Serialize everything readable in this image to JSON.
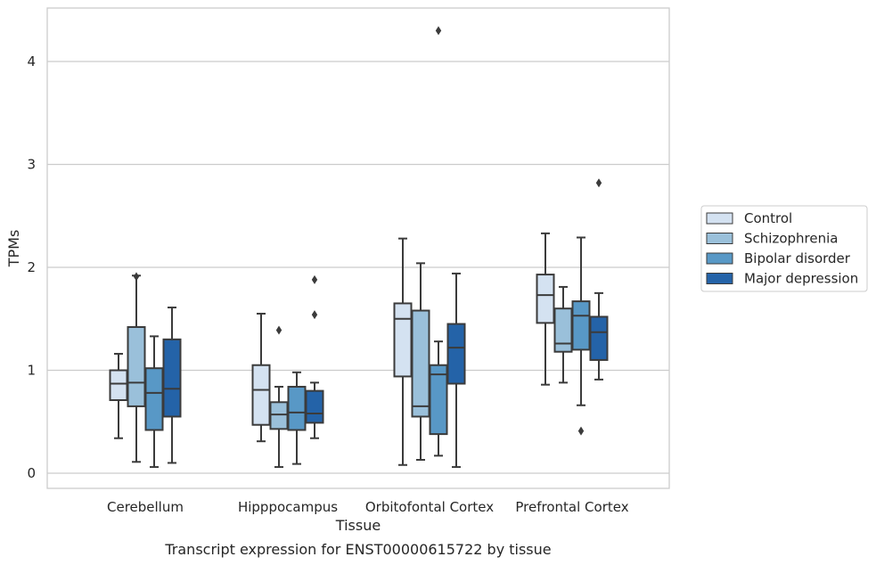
{
  "caption": "Transcript expression for ENST00000615722 by tissue",
  "chart_data": {
    "type": "box",
    "xlabel": "Tissue",
    "ylabel": "TPMs",
    "ylim": [
      -0.15,
      4.55
    ],
    "yticks": [
      0,
      1,
      2,
      3,
      4
    ],
    "grid": "horizontal",
    "legend_position": "right",
    "categories": [
      "Cerebellum",
      "Hipppocampus",
      "Orbitofontal Cortex",
      "Prefrontal Cortex"
    ],
    "series": [
      {
        "name": "Control",
        "color": "#d4e2f1",
        "boxes": [
          {
            "whislo": 0.34,
            "q1": 0.71,
            "med": 0.87,
            "q3": 1.0,
            "whishi": 1.16,
            "fliers": []
          },
          {
            "whislo": 0.31,
            "q1": 0.47,
            "med": 0.81,
            "q3": 1.05,
            "whishi": 1.55,
            "fliers": []
          },
          {
            "whislo": 0.08,
            "q1": 0.94,
            "med": 1.5,
            "q3": 1.65,
            "whishi": 2.28,
            "fliers": []
          },
          {
            "whislo": 0.86,
            "q1": 1.46,
            "med": 1.73,
            "q3": 1.93,
            "whishi": 2.33,
            "fliers": []
          }
        ]
      },
      {
        "name": "Schizophrenia",
        "color": "#9ac0da",
        "boxes": [
          {
            "whislo": 0.11,
            "q1": 0.65,
            "med": 0.88,
            "q3": 1.42,
            "whishi": 1.92,
            "fliers": [
              1.91
            ]
          },
          {
            "whislo": 0.06,
            "q1": 0.43,
            "med": 0.57,
            "q3": 0.69,
            "whishi": 0.84,
            "fliers": [
              1.39
            ]
          },
          {
            "whislo": 0.13,
            "q1": 0.55,
            "med": 0.65,
            "q3": 1.58,
            "whishi": 2.04,
            "fliers": []
          },
          {
            "whislo": 0.88,
            "q1": 1.18,
            "med": 1.26,
            "q3": 1.6,
            "whishi": 1.81,
            "fliers": []
          }
        ]
      },
      {
        "name": "Bipolar disorder",
        "color": "#5898c6",
        "boxes": [
          {
            "whislo": 0.06,
            "q1": 0.42,
            "med": 0.78,
            "q3": 1.02,
            "whishi": 1.33,
            "fliers": []
          },
          {
            "whislo": 0.09,
            "q1": 0.42,
            "med": 0.59,
            "q3": 0.84,
            "whishi": 0.98,
            "fliers": []
          },
          {
            "whislo": 0.17,
            "q1": 0.38,
            "med": 0.96,
            "q3": 1.05,
            "whishi": 1.28,
            "fliers": [
              4.3
            ]
          },
          {
            "whislo": 0.66,
            "q1": 1.2,
            "med": 1.53,
            "q3": 1.67,
            "whishi": 2.29,
            "fliers": [
              0.41
            ]
          }
        ]
      },
      {
        "name": "Major depression",
        "color": "#2463a8",
        "boxes": [
          {
            "whislo": 0.1,
            "q1": 0.55,
            "med": 0.82,
            "q3": 1.3,
            "whishi": 1.61,
            "fliers": []
          },
          {
            "whislo": 0.34,
            "q1": 0.49,
            "med": 0.58,
            "q3": 0.8,
            "whishi": 0.88,
            "fliers": [
              1.54,
              1.88
            ]
          },
          {
            "whislo": 0.06,
            "q1": 0.87,
            "med": 1.22,
            "q3": 1.45,
            "whishi": 1.94,
            "fliers": []
          },
          {
            "whislo": 0.91,
            "q1": 1.1,
            "med": 1.37,
            "q3": 1.52,
            "whishi": 1.75,
            "fliers": [
              2.82
            ]
          }
        ]
      }
    ]
  }
}
